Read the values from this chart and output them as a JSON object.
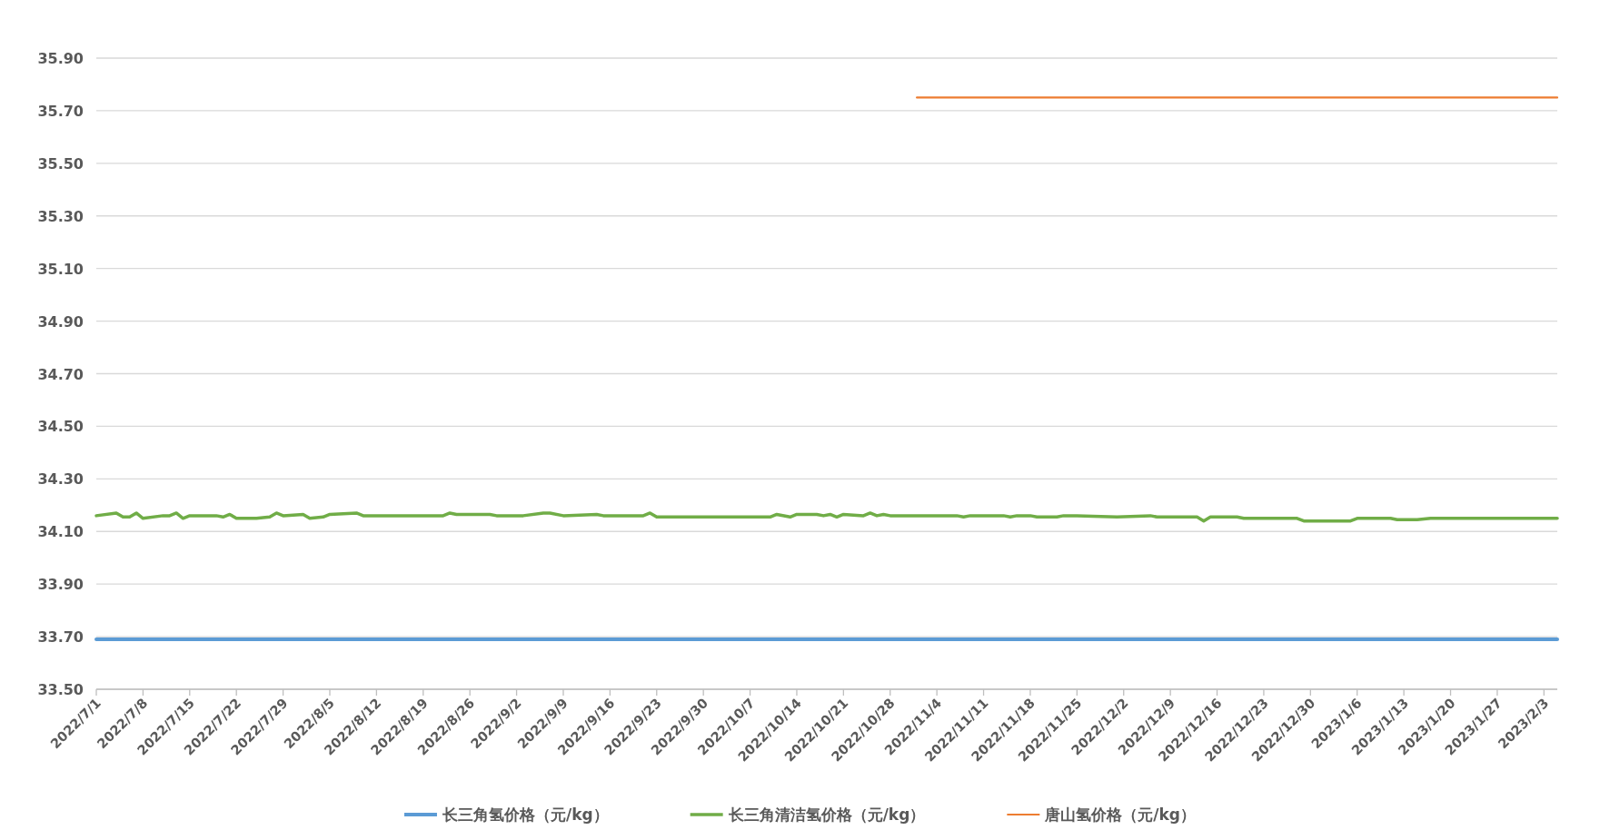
{
  "chart_data": {
    "type": "line",
    "ylim": [
      33.5,
      35.9
    ],
    "yticks": [
      {
        "value": 33.5,
        "label": "33.50"
      },
      {
        "value": 33.7,
        "label": "33.70"
      },
      {
        "value": 33.9,
        "label": "33.90"
      },
      {
        "value": 34.1,
        "label": "34.10"
      },
      {
        "value": 34.3,
        "label": "34.30"
      },
      {
        "value": 34.5,
        "label": "34.50"
      },
      {
        "value": 34.7,
        "label": "34.70"
      },
      {
        "value": 34.9,
        "label": "34.90"
      },
      {
        "value": 35.1,
        "label": "35.10"
      },
      {
        "value": 35.3,
        "label": "35.30"
      },
      {
        "value": 35.5,
        "label": "35.50"
      },
      {
        "value": 35.7,
        "label": "35.70"
      },
      {
        "value": 35.9,
        "label": "35.90"
      }
    ],
    "xlim": [
      "2022-07-01",
      "2023-02-05"
    ],
    "xticks": [
      {
        "value": "2022-07-01",
        "label": "2022/7/1"
      },
      {
        "value": "2022-07-08",
        "label": "2022/7/8"
      },
      {
        "value": "2022-07-15",
        "label": "2022/7/15"
      },
      {
        "value": "2022-07-22",
        "label": "2022/7/22"
      },
      {
        "value": "2022-07-29",
        "label": "2022/7/29"
      },
      {
        "value": "2022-08-05",
        "label": "2022/8/5"
      },
      {
        "value": "2022-08-12",
        "label": "2022/8/12"
      },
      {
        "value": "2022-08-19",
        "label": "2022/8/19"
      },
      {
        "value": "2022-08-26",
        "label": "2022/8/26"
      },
      {
        "value": "2022-09-02",
        "label": "2022/9/2"
      },
      {
        "value": "2022-09-09",
        "label": "2022/9/9"
      },
      {
        "value": "2022-09-16",
        "label": "2022/9/16"
      },
      {
        "value": "2022-09-23",
        "label": "2022/9/23"
      },
      {
        "value": "2022-09-30",
        "label": "2022/9/30"
      },
      {
        "value": "2022-10-07",
        "label": "2022/10/7"
      },
      {
        "value": "2022-10-14",
        "label": "2022/10/14"
      },
      {
        "value": "2022-10-21",
        "label": "2022/10/21"
      },
      {
        "value": "2022-10-28",
        "label": "2022/10/28"
      },
      {
        "value": "2022-11-04",
        "label": "2022/11/4"
      },
      {
        "value": "2022-11-11",
        "label": "2022/11/11"
      },
      {
        "value": "2022-11-18",
        "label": "2022/11/18"
      },
      {
        "value": "2022-11-25",
        "label": "2022/11/25"
      },
      {
        "value": "2022-12-02",
        "label": "2022/12/2"
      },
      {
        "value": "2022-12-09",
        "label": "2022/12/9"
      },
      {
        "value": "2022-12-16",
        "label": "2022/12/16"
      },
      {
        "value": "2022-12-23",
        "label": "2022/12/23"
      },
      {
        "value": "2022-12-30",
        "label": "2022/12/30"
      },
      {
        "value": "2023-01-06",
        "label": "2023/1/6"
      },
      {
        "value": "2023-01-13",
        "label": "2023/1/13"
      },
      {
        "value": "2023-01-20",
        "label": "2023/1/20"
      },
      {
        "value": "2023-01-27",
        "label": "2023/1/27"
      },
      {
        "value": "2023-02-03",
        "label": "2023/2/3"
      }
    ],
    "grid": "y",
    "legend": "bottom",
    "marker": "none",
    "line_style": "solid",
    "series": [
      {
        "name": "长三角氢价格（元/kg）",
        "color": "#5b9bd5",
        "x": [
          "2022-07-01",
          "2023-02-05"
        ],
        "values": [
          33.69,
          33.69
        ]
      },
      {
        "name": "长三角清洁氢价格（元/kg）",
        "color": "#70ad47",
        "x": [
          "2022-07-01",
          "2022-07-04",
          "2022-07-05",
          "2022-07-06",
          "2022-07-07",
          "2022-07-08",
          "2022-07-11",
          "2022-07-12",
          "2022-07-13",
          "2022-07-14",
          "2022-07-15",
          "2022-07-19",
          "2022-07-20",
          "2022-07-21",
          "2022-07-22",
          "2022-07-25",
          "2022-07-27",
          "2022-07-28",
          "2022-07-29",
          "2022-08-01",
          "2022-08-02",
          "2022-08-04",
          "2022-08-05",
          "2022-08-09",
          "2022-08-10",
          "2022-08-22",
          "2022-08-23",
          "2022-08-24",
          "2022-08-29",
          "2022-08-30",
          "2022-09-03",
          "2022-09-06",
          "2022-09-07",
          "2022-09-09",
          "2022-09-14",
          "2022-09-15",
          "2022-09-21",
          "2022-09-22",
          "2022-09-23",
          "2022-10-10",
          "2022-10-11",
          "2022-10-13",
          "2022-10-14",
          "2022-10-17",
          "2022-10-18",
          "2022-10-19",
          "2022-10-20",
          "2022-10-21",
          "2022-10-24",
          "2022-10-25",
          "2022-10-26",
          "2022-10-27",
          "2022-10-28",
          "2022-11-07",
          "2022-11-08",
          "2022-11-09",
          "2022-11-14",
          "2022-11-15",
          "2022-11-16",
          "2022-11-18",
          "2022-11-19",
          "2022-11-21",
          "2022-11-22",
          "2022-11-23",
          "2022-11-25",
          "2022-12-01",
          "2022-12-06",
          "2022-12-07",
          "2022-12-09",
          "2022-12-12",
          "2022-12-13",
          "2022-12-14",
          "2022-12-15",
          "2022-12-19",
          "2022-12-20",
          "2022-12-21",
          "2022-12-22",
          "2022-12-26",
          "2022-12-27",
          "2022-12-28",
          "2022-12-29",
          "2023-01-05",
          "2023-01-06",
          "2023-01-11",
          "2023-01-12",
          "2023-01-15",
          "2023-01-17",
          "2023-02-05"
        ],
        "values": [
          34.16,
          34.17,
          34.155,
          34.155,
          34.17,
          34.15,
          34.16,
          34.16,
          34.17,
          34.15,
          34.16,
          34.16,
          34.155,
          34.165,
          34.15,
          34.15,
          34.155,
          34.17,
          34.16,
          34.165,
          34.15,
          34.155,
          34.165,
          34.17,
          34.16,
          34.16,
          34.17,
          34.165,
          34.165,
          34.16,
          34.16,
          34.17,
          34.17,
          34.16,
          34.165,
          34.16,
          34.16,
          34.17,
          34.155,
          34.155,
          34.165,
          34.155,
          34.165,
          34.165,
          34.16,
          34.165,
          34.155,
          34.165,
          34.16,
          34.17,
          34.16,
          34.165,
          34.16,
          34.16,
          34.155,
          34.16,
          34.16,
          34.155,
          34.16,
          34.16,
          34.155,
          34.155,
          34.155,
          34.16,
          34.16,
          34.155,
          34.16,
          34.155,
          34.155,
          34.155,
          34.155,
          34.14,
          34.155,
          34.155,
          34.15,
          34.15,
          34.15,
          34.15,
          34.15,
          34.15,
          34.14,
          34.14,
          34.15,
          34.15,
          34.145,
          34.145,
          34.15,
          34.15
        ]
      },
      {
        "name": "唐山氢价格（元/kg）",
        "color": "#ed7d31",
        "x": [
          "2022-11-01",
          "2023-02-05"
        ],
        "values": [
          35.75,
          35.75
        ]
      }
    ]
  }
}
